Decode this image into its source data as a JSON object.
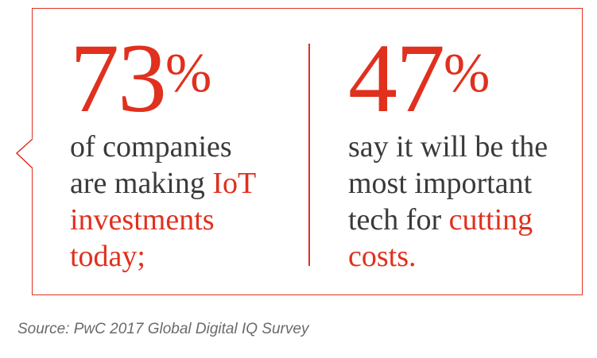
{
  "colors": {
    "accent": "#e0301e",
    "text": "#3a3a3a",
    "source": "#6a6a6a"
  },
  "stats": [
    {
      "number": "73",
      "unit": "%",
      "lines": [
        [
          {
            "t": "of companies",
            "hl": false
          }
        ],
        [
          {
            "t": "are making ",
            "hl": false
          },
          {
            "t": "IoT",
            "hl": true
          }
        ],
        [
          {
            "t": "investments",
            "hl": true
          }
        ],
        [
          {
            "t": "today;",
            "hl": true
          }
        ]
      ]
    },
    {
      "number": "47",
      "unit": "%",
      "lines": [
        [
          {
            "t": "say it will be the",
            "hl": false
          }
        ],
        [
          {
            "t": "most important",
            "hl": false
          }
        ],
        [
          {
            "t": "tech for ",
            "hl": false
          },
          {
            "t": "cutting",
            "hl": true
          }
        ],
        [
          {
            "t": "costs.",
            "hl": true
          }
        ]
      ]
    }
  ],
  "source": "Source: PwC 2017 Global Digital IQ Survey"
}
